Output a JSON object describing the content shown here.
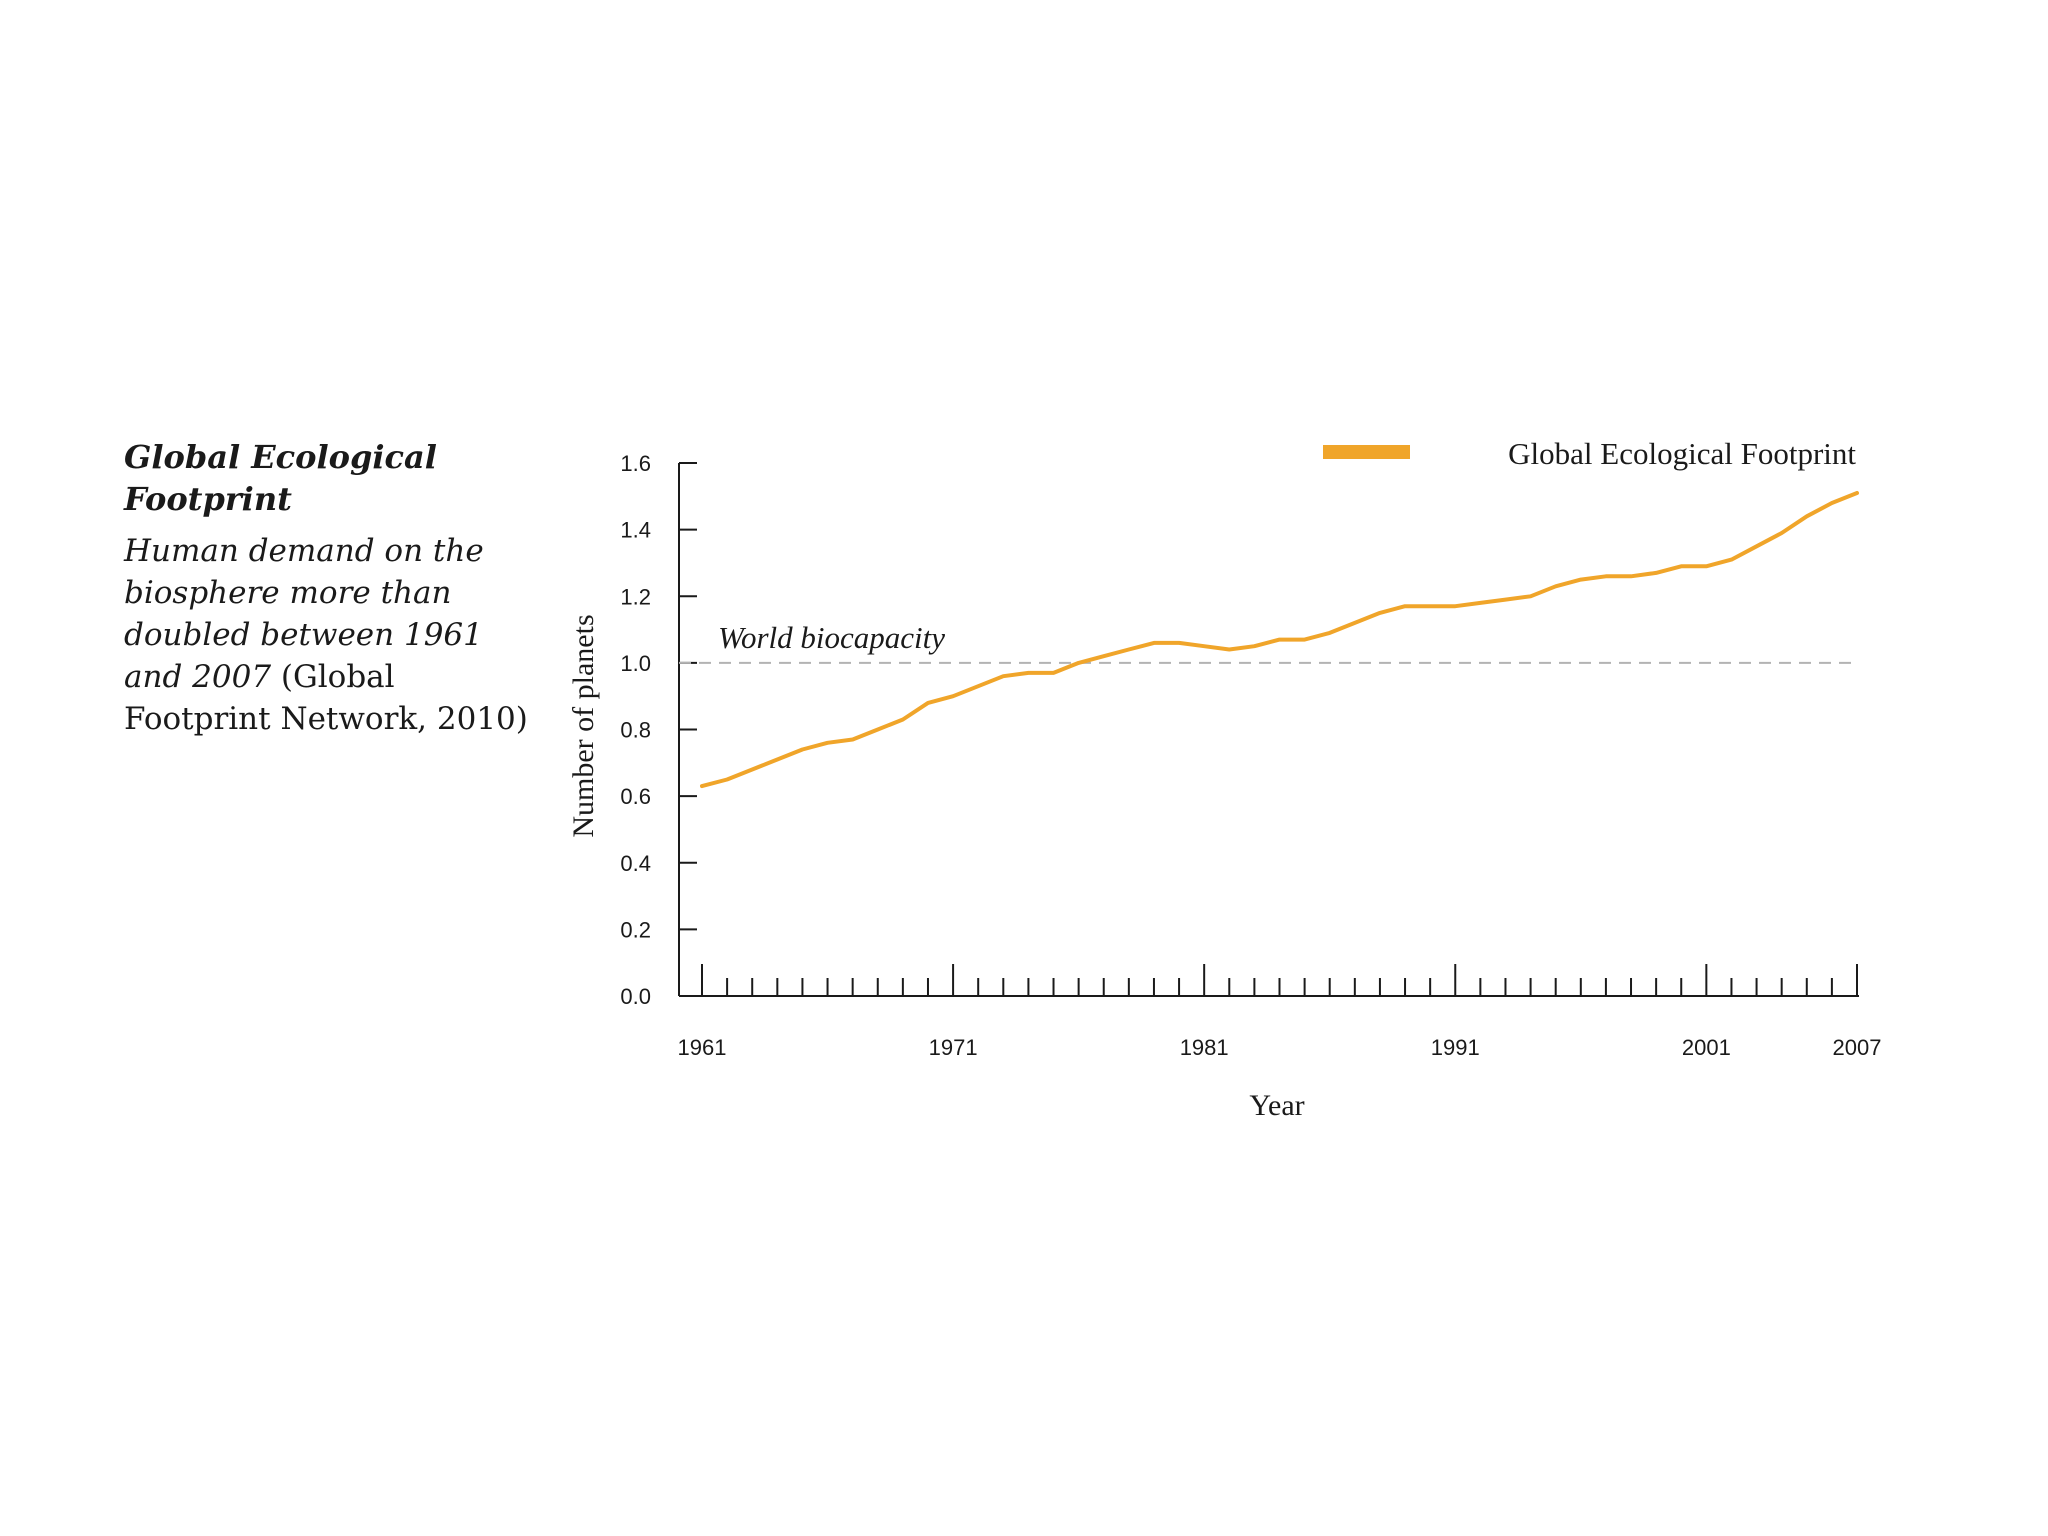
{
  "caption": {
    "title": "Global Ecological Footprint",
    "body_italic": "Human demand on the biosphere more than doubled between 1961 and 2007",
    "body_source": " (Global Footprint Network, 2010)"
  },
  "colors": {
    "series": "#f0a52a",
    "axis": "#1a1a1a",
    "reference": "#b3b3b3",
    "text": "#1a1a1a"
  },
  "chart_data": {
    "type": "line",
    "title": "Global Ecological Footprint",
    "xlabel": "Year",
    "ylabel": "Number of planets",
    "xlim": [
      1961,
      2007
    ],
    "ylim": [
      0.0,
      1.6
    ],
    "xticks": [
      "1961",
      "1971",
      "1981",
      "1991",
      "2001",
      "2007"
    ],
    "yticks": [
      "0.0",
      "0.2",
      "0.4",
      "0.6",
      "0.8",
      "1.0",
      "1.2",
      "1.4",
      "1.6"
    ],
    "grid": false,
    "legend": "top-right",
    "reference_line": {
      "label": "World biocapacity",
      "y": 1.0,
      "style": "dashed"
    },
    "x": [
      1961,
      1962,
      1963,
      1964,
      1965,
      1966,
      1967,
      1968,
      1969,
      1970,
      1971,
      1972,
      1973,
      1974,
      1975,
      1976,
      1977,
      1978,
      1979,
      1980,
      1981,
      1982,
      1983,
      1984,
      1985,
      1986,
      1987,
      1988,
      1989,
      1990,
      1991,
      1992,
      1993,
      1994,
      1995,
      1996,
      1997,
      1998,
      1999,
      2000,
      2001,
      2002,
      2003,
      2004,
      2005,
      2006,
      2007
    ],
    "series": [
      {
        "name": "Global Ecological Footprint",
        "values": [
          0.63,
          0.65,
          0.68,
          0.71,
          0.74,
          0.76,
          0.77,
          0.8,
          0.83,
          0.88,
          0.9,
          0.93,
          0.96,
          0.97,
          0.97,
          1.0,
          1.02,
          1.04,
          1.06,
          1.06,
          1.05,
          1.04,
          1.05,
          1.07,
          1.07,
          1.09,
          1.12,
          1.15,
          1.17,
          1.17,
          1.17,
          1.18,
          1.19,
          1.2,
          1.23,
          1.25,
          1.26,
          1.26,
          1.27,
          1.29,
          1.29,
          1.31,
          1.35,
          1.39,
          1.44,
          1.48,
          1.51
        ]
      }
    ]
  }
}
